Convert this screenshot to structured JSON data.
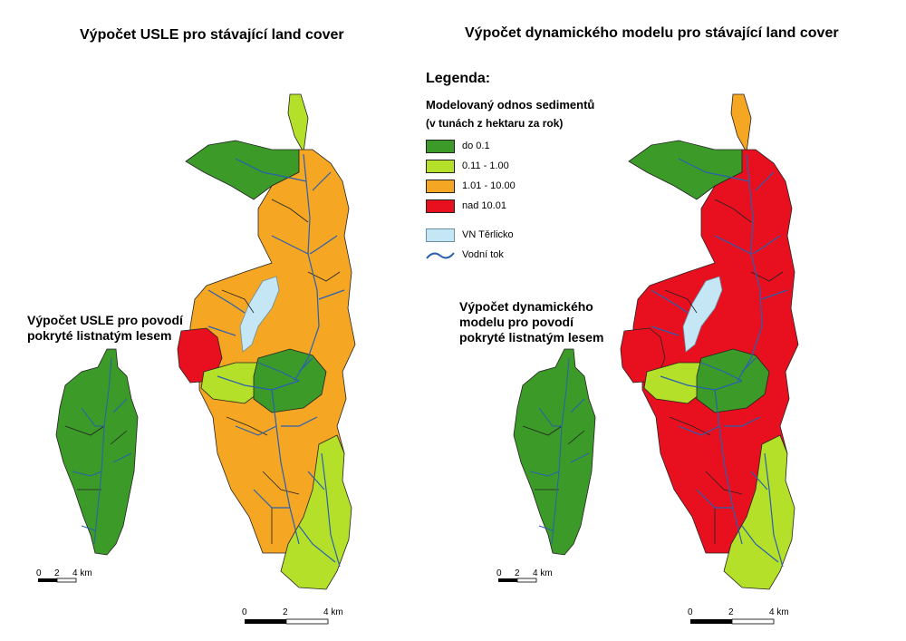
{
  "titles": {
    "left": "Výpočet USLE pro stávající land cover",
    "right": "Výpočet dynamického modelu pro stávající land cover",
    "small_left": "Výpočet USLE pro povodí pokryté listnatým lesem",
    "small_right": "Výpočet dynamického modelu pro povodí pokryté listnatým lesem"
  },
  "legend": {
    "title": "Legenda:",
    "heading1": "Modelovaný odnos sedimentů",
    "heading2": "(v tunách z hektaru za rok)",
    "classes": [
      {
        "label": "do  0.1",
        "color": "#3c9a28"
      },
      {
        "label": "0.11 - 1.00",
        "color": "#b5e02a"
      },
      {
        "label": "1.01 - 10.00",
        "color": "#f5a623"
      },
      {
        "label": "nad 10.01",
        "color": "#e8101f"
      }
    ],
    "reservoir": {
      "label": "VN Těrlicko",
      "color": "#c5e6f5"
    },
    "river": {
      "label": "Vodní tok",
      "color": "#2a5fb0"
    }
  },
  "scalebars": {
    "large": {
      "ticks": [
        "0",
        "2",
        "4 km"
      ]
    },
    "small": {
      "ticks": [
        "0",
        "2",
        "4 km"
      ]
    }
  }
}
